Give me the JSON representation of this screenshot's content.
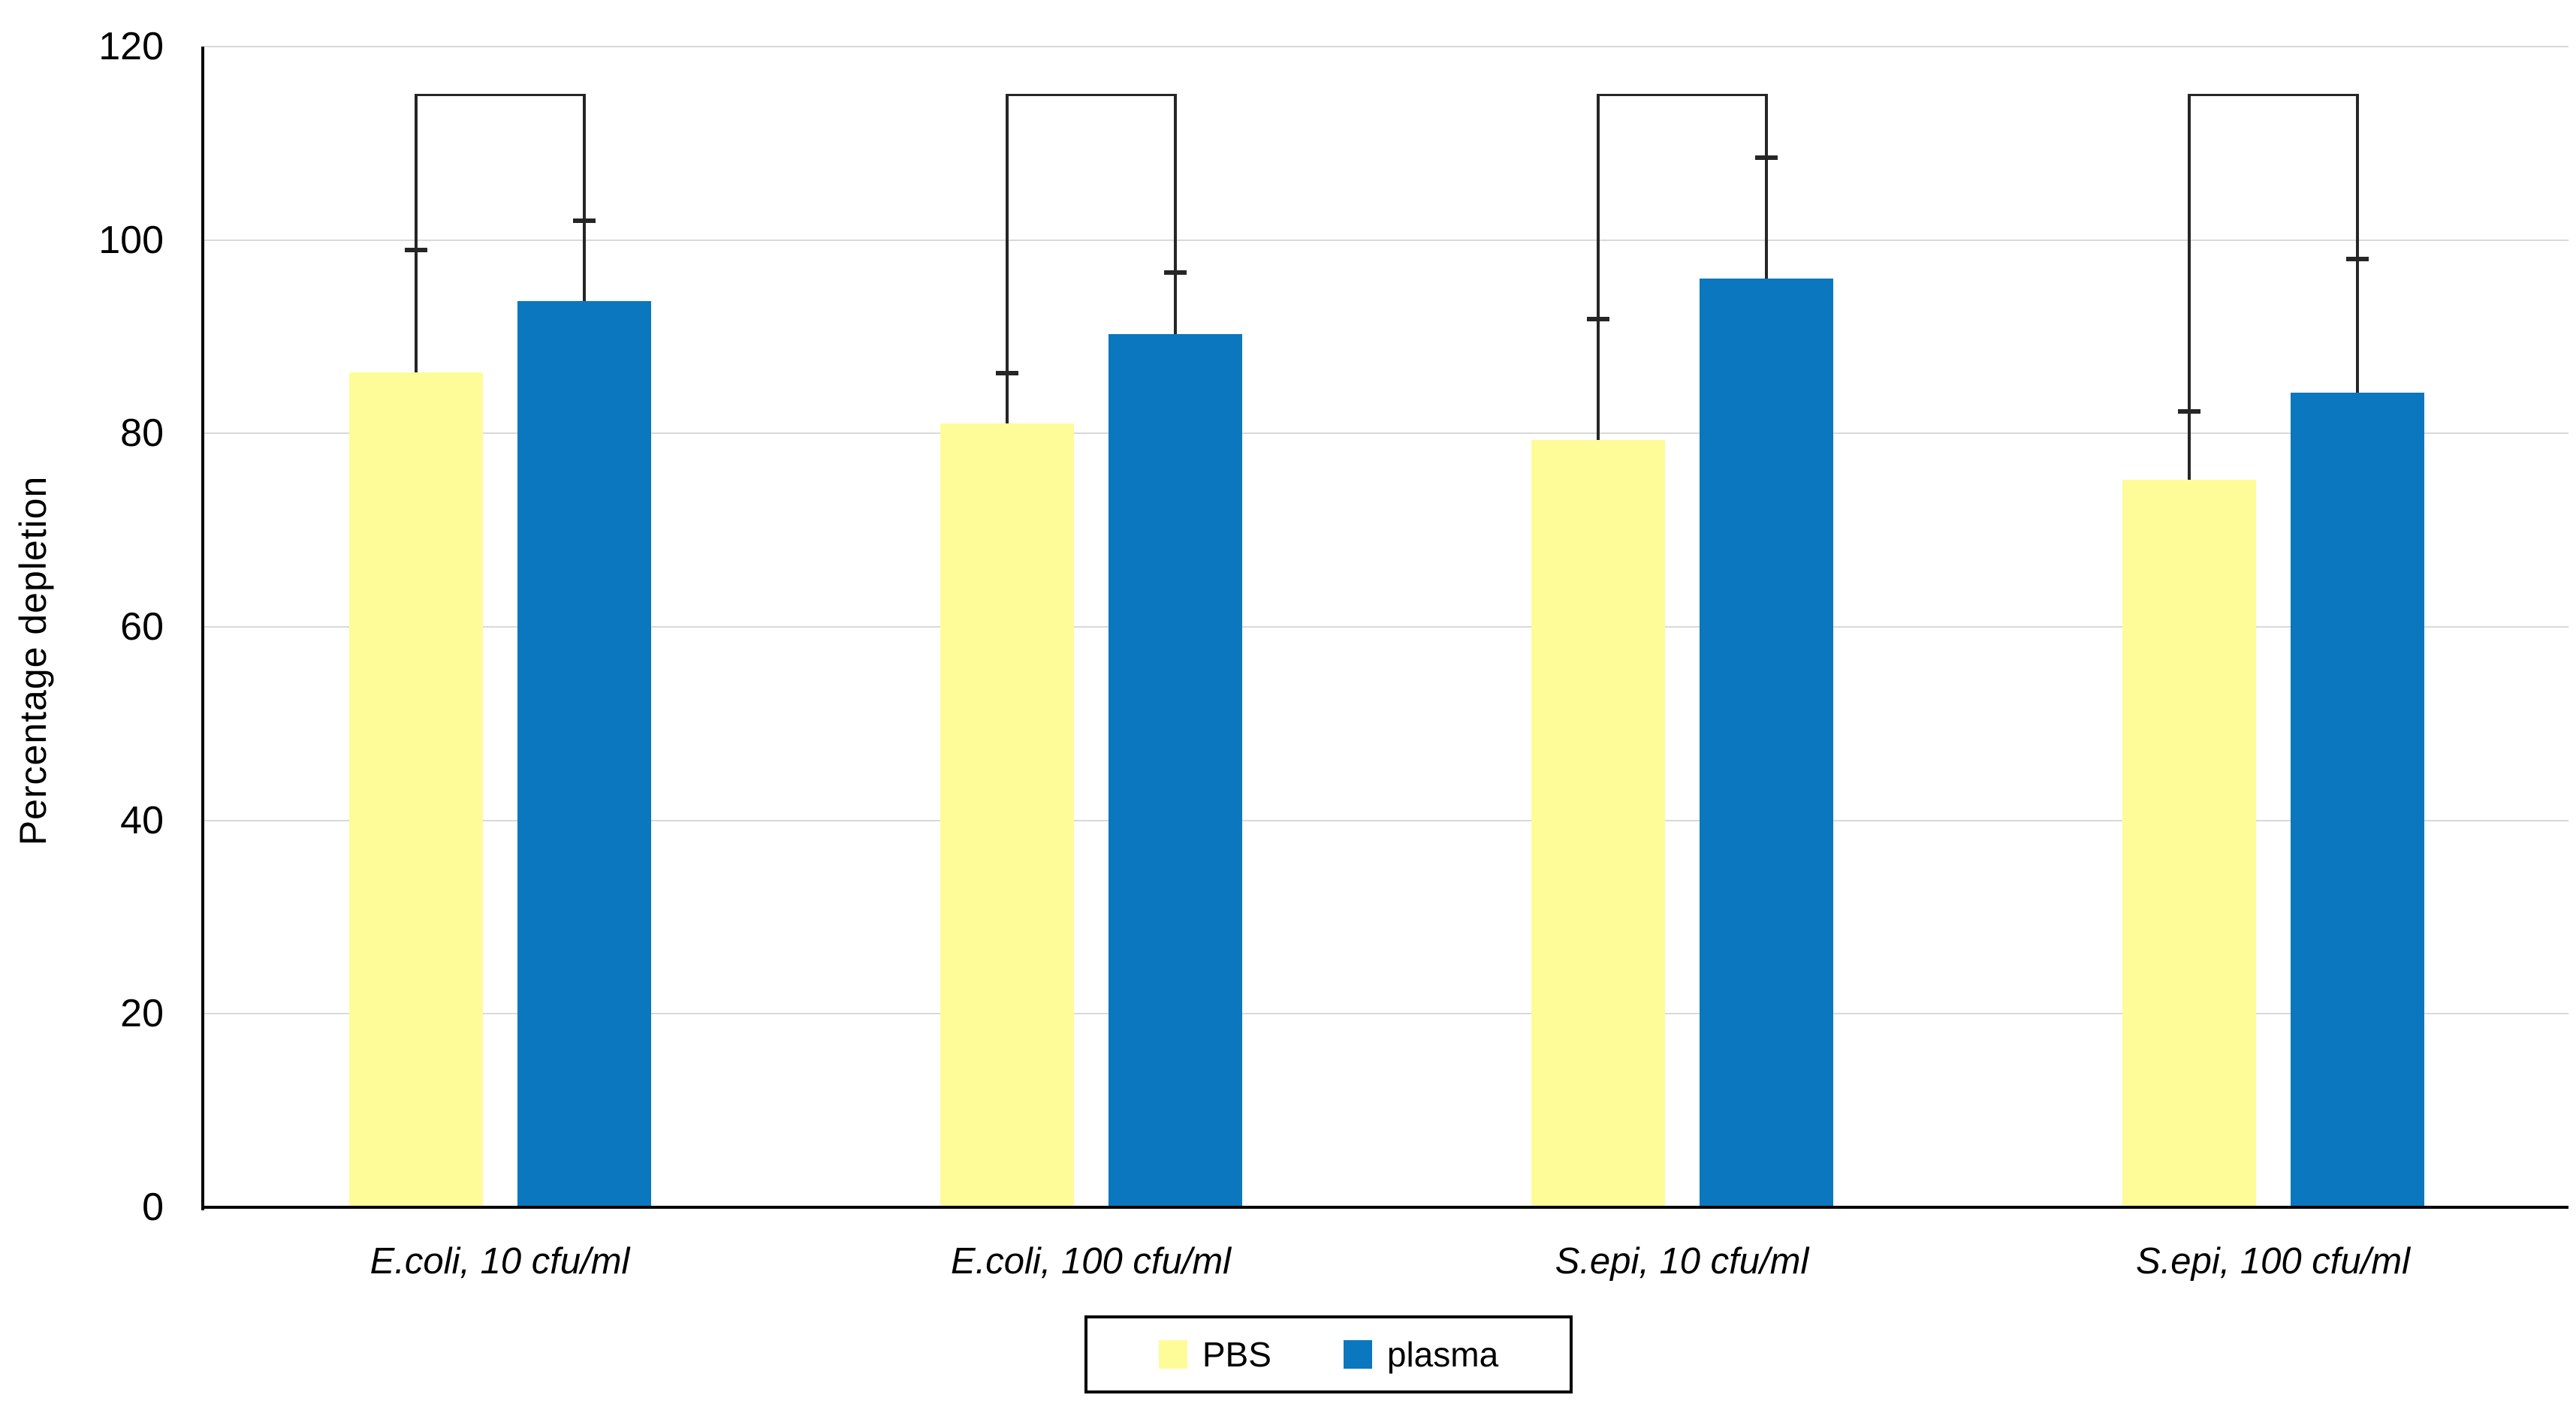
{
  "chart_data": {
    "type": "bar",
    "title": "",
    "xlabel": "",
    "ylabel": "Percentage depletion",
    "ylim": [
      0,
      120
    ],
    "yticks": [
      0,
      20,
      40,
      60,
      80,
      100,
      120
    ],
    "grid": true,
    "gridline_color": "#d9d9d9",
    "axis_color": "#000000",
    "error_bar_color": "#262626",
    "legend_position": "bottom-center",
    "categories": [
      "E.coli, 10 cfu/ml",
      "E.coli, 100 cfu/ml",
      "S.epi, 10 cfu/ml",
      "S.epi, 100 cfu/ml"
    ],
    "series": [
      {
        "name": "PBS",
        "color": "#fdfc99",
        "values": [
          86.3,
          81.0,
          79.3,
          75.2
        ],
        "error_top": [
          99.0,
          86.2,
          91.8,
          82.3
        ]
      },
      {
        "name": "plasma",
        "color": "#0b77be",
        "values": [
          93.7,
          90.3,
          96.0,
          84.2
        ],
        "error_top": [
          102.0,
          96.6,
          108.5,
          98.0
        ]
      }
    ],
    "significance_brackets": [
      {
        "group_index": 0,
        "connects": [
          "PBS",
          "plasma"
        ],
        "y": 115
      },
      {
        "group_index": 1,
        "connects": [
          "PBS",
          "plasma"
        ],
        "y": 115
      },
      {
        "group_index": 2,
        "connects": [
          "PBS",
          "plasma"
        ],
        "y": 115
      },
      {
        "group_index": 3,
        "connects": [
          "PBS",
          "plasma"
        ],
        "y": 115
      }
    ]
  },
  "legend": {
    "items": [
      {
        "label": "PBS",
        "color": "#fdfc99"
      },
      {
        "label": "plasma",
        "color": "#0b77be"
      }
    ]
  }
}
